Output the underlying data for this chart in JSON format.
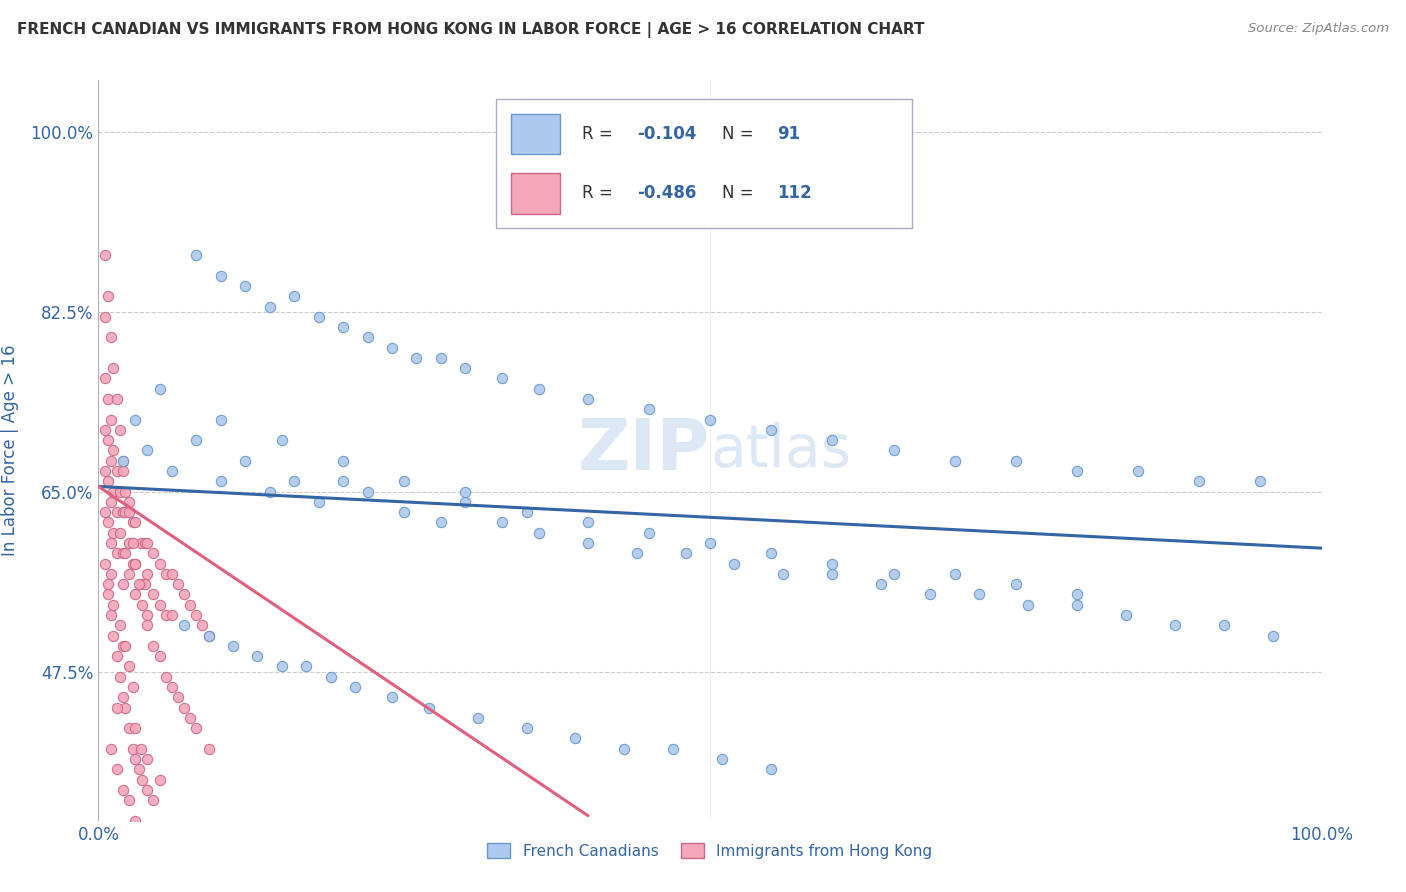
{
  "title": "FRENCH CANADIAN VS IMMIGRANTS FROM HONG KONG IN LABOR FORCE | AGE > 16 CORRELATION CHART",
  "source_text": "Source: ZipAtlas.com",
  "ylabel": "In Labor Force | Age > 16",
  "xlim": [
    0.0,
    1.0
  ],
  "ylim": [
    0.33,
    1.05
  ],
  "yticks": [
    0.475,
    0.65,
    0.825,
    1.0
  ],
  "ytick_labels": [
    "47.5%",
    "65.0%",
    "82.5%",
    "100.0%"
  ],
  "xticks": [
    0.0,
    1.0
  ],
  "xtick_labels": [
    "0.0%",
    "100.0%"
  ],
  "legend_r1_val": "-0.104",
  "legend_n1_val": "91",
  "legend_r2_val": "-0.486",
  "legend_n2_val": "112",
  "series1_label": "French Canadians",
  "series2_label": "Immigrants from Hong Kong",
  "series1_color": "#adc9ee",
  "series2_color": "#f4a7b9",
  "series1_edge": "#6699cc",
  "series2_edge": "#cc6688",
  "line1_color": "#3465a4",
  "line2_color": "#e06080",
  "title_color": "#333333",
  "source_color": "#888888",
  "axis_label_color": "#3465a4",
  "tick_label_color": "#3465a4",
  "legend_text_color": "#333333",
  "legend_val_color": "#3465a4",
  "watermark_color": "#dce8f5",
  "background_color": "#ffffff",
  "grid_color": "#cccccc",
  "line1_x0": 0.0,
  "line1_y0": 0.655,
  "line1_x1": 1.0,
  "line1_y1": 0.595,
  "line2_x0": 0.0,
  "line2_y0": 0.655,
  "line2_x1": 0.4,
  "line2_y1": 0.335,
  "fc_x": [
    0.02,
    0.03,
    0.04,
    0.06,
    0.08,
    0.1,
    0.12,
    0.14,
    0.16,
    0.18,
    0.2,
    0.22,
    0.25,
    0.28,
    0.3,
    0.33,
    0.36,
    0.4,
    0.44,
    0.48,
    0.52,
    0.56,
    0.6,
    0.64,
    0.68,
    0.72,
    0.76,
    0.8,
    0.84,
    0.88,
    0.92,
    0.96,
    0.05,
    0.1,
    0.15,
    0.2,
    0.25,
    0.3,
    0.35,
    0.4,
    0.45,
    0.5,
    0.55,
    0.6,
    0.65,
    0.7,
    0.75,
    0.8,
    0.08,
    0.1,
    0.12,
    0.14,
    0.16,
    0.18,
    0.2,
    0.22,
    0.24,
    0.26,
    0.28,
    0.3,
    0.33,
    0.36,
    0.4,
    0.45,
    0.5,
    0.55,
    0.6,
    0.65,
    0.7,
    0.75,
    0.8,
    0.85,
    0.9,
    0.95,
    0.07,
    0.09,
    0.11,
    0.13,
    0.15,
    0.17,
    0.19,
    0.21,
    0.24,
    0.27,
    0.31,
    0.35,
    0.39,
    0.43,
    0.47,
    0.51,
    0.55
  ],
  "fc_y": [
    0.68,
    0.72,
    0.69,
    0.67,
    0.7,
    0.66,
    0.68,
    0.65,
    0.66,
    0.64,
    0.66,
    0.65,
    0.63,
    0.62,
    0.64,
    0.62,
    0.61,
    0.6,
    0.59,
    0.59,
    0.58,
    0.57,
    0.57,
    0.56,
    0.55,
    0.55,
    0.54,
    0.54,
    0.53,
    0.52,
    0.52,
    0.51,
    0.75,
    0.72,
    0.7,
    0.68,
    0.66,
    0.65,
    0.63,
    0.62,
    0.61,
    0.6,
    0.59,
    0.58,
    0.57,
    0.57,
    0.56,
    0.55,
    0.88,
    0.86,
    0.85,
    0.83,
    0.84,
    0.82,
    0.81,
    0.8,
    0.79,
    0.78,
    0.78,
    0.77,
    0.76,
    0.75,
    0.74,
    0.73,
    0.72,
    0.71,
    0.7,
    0.69,
    0.68,
    0.68,
    0.67,
    0.67,
    0.66,
    0.66,
    0.52,
    0.51,
    0.5,
    0.49,
    0.48,
    0.48,
    0.47,
    0.46,
    0.45,
    0.44,
    0.43,
    0.42,
    0.41,
    0.4,
    0.4,
    0.39,
    0.38
  ],
  "hk_x": [
    0.005,
    0.005,
    0.005,
    0.005,
    0.005,
    0.008,
    0.008,
    0.008,
    0.008,
    0.01,
    0.01,
    0.01,
    0.01,
    0.01,
    0.012,
    0.012,
    0.012,
    0.015,
    0.015,
    0.015,
    0.018,
    0.018,
    0.02,
    0.02,
    0.02,
    0.02,
    0.022,
    0.022,
    0.025,
    0.025,
    0.025,
    0.028,
    0.028,
    0.03,
    0.03,
    0.03,
    0.035,
    0.035,
    0.038,
    0.038,
    0.04,
    0.04,
    0.04,
    0.045,
    0.045,
    0.05,
    0.05,
    0.055,
    0.055,
    0.06,
    0.06,
    0.065,
    0.07,
    0.075,
    0.08,
    0.085,
    0.09,
    0.005,
    0.008,
    0.01,
    0.012,
    0.015,
    0.018,
    0.02,
    0.022,
    0.025,
    0.028,
    0.03,
    0.033,
    0.036,
    0.04,
    0.045,
    0.05,
    0.055,
    0.06,
    0.065,
    0.07,
    0.075,
    0.08,
    0.09,
    0.005,
    0.008,
    0.01,
    0.012,
    0.015,
    0.018,
    0.02,
    0.022,
    0.025,
    0.028,
    0.03,
    0.033,
    0.036,
    0.04,
    0.045,
    0.01,
    0.015,
    0.02,
    0.025,
    0.03,
    0.02,
    0.025,
    0.018,
    0.022,
    0.012,
    0.028,
    0.015,
    0.008,
    0.03,
    0.035,
    0.04,
    0.05
  ],
  "hk_y": [
    0.82,
    0.76,
    0.71,
    0.67,
    0.63,
    0.74,
    0.7,
    0.66,
    0.62,
    0.72,
    0.68,
    0.64,
    0.6,
    0.57,
    0.69,
    0.65,
    0.61,
    0.67,
    0.63,
    0.59,
    0.65,
    0.61,
    0.67,
    0.63,
    0.59,
    0.56,
    0.63,
    0.59,
    0.64,
    0.6,
    0.57,
    0.62,
    0.58,
    0.62,
    0.58,
    0.55,
    0.6,
    0.56,
    0.6,
    0.56,
    0.6,
    0.57,
    0.53,
    0.59,
    0.55,
    0.58,
    0.54,
    0.57,
    0.53,
    0.57,
    0.53,
    0.56,
    0.55,
    0.54,
    0.53,
    0.52,
    0.51,
    0.88,
    0.84,
    0.8,
    0.77,
    0.74,
    0.71,
    0.68,
    0.65,
    0.63,
    0.6,
    0.58,
    0.56,
    0.54,
    0.52,
    0.5,
    0.49,
    0.47,
    0.46,
    0.45,
    0.44,
    0.43,
    0.42,
    0.4,
    0.58,
    0.55,
    0.53,
    0.51,
    0.49,
    0.47,
    0.45,
    0.44,
    0.42,
    0.4,
    0.39,
    0.38,
    0.37,
    0.36,
    0.35,
    0.4,
    0.38,
    0.36,
    0.35,
    0.33,
    0.5,
    0.48,
    0.52,
    0.5,
    0.54,
    0.46,
    0.44,
    0.56,
    0.42,
    0.4,
    0.39,
    0.37
  ]
}
